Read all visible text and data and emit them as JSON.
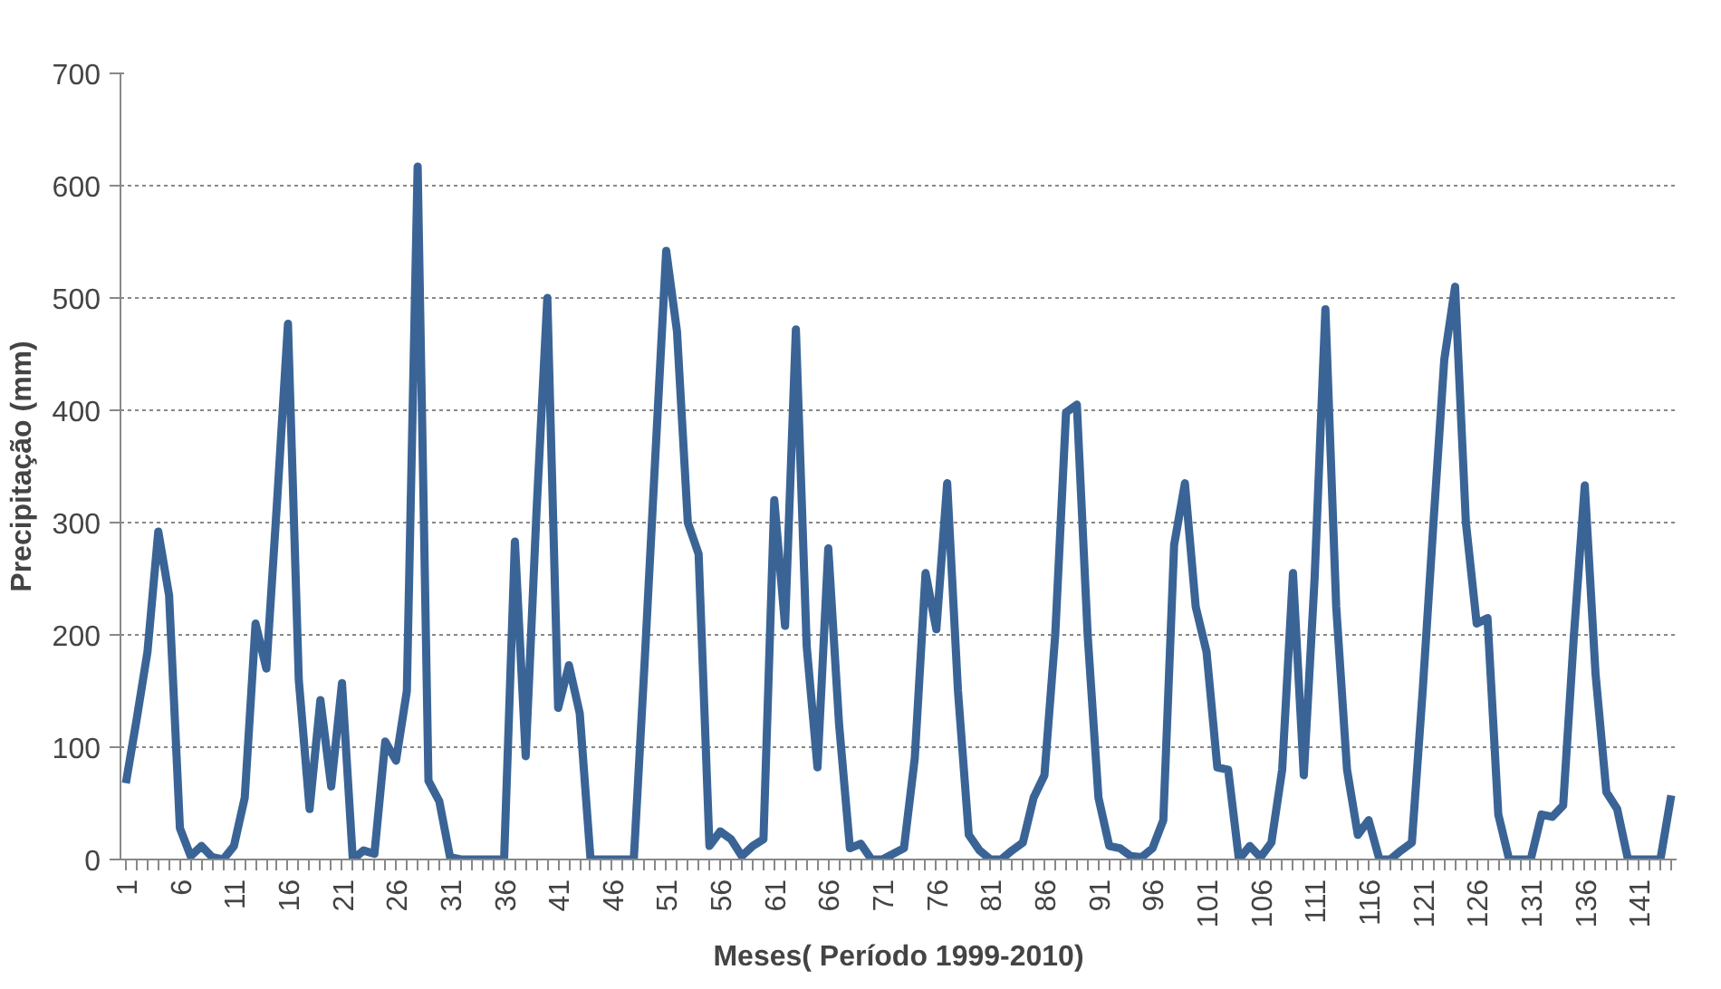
{
  "chart_data": {
    "type": "line",
    "xlabel": "Meses( Período 1999-2010)",
    "ylabel": "Precipitação (mm)",
    "x": [
      1,
      2,
      3,
      4,
      5,
      6,
      7,
      8,
      9,
      10,
      11,
      12,
      13,
      14,
      15,
      16,
      17,
      18,
      19,
      20,
      21,
      22,
      23,
      24,
      25,
      26,
      27,
      28,
      29,
      30,
      31,
      32,
      33,
      34,
      35,
      36,
      37,
      38,
      39,
      40,
      41,
      42,
      43,
      44,
      45,
      46,
      47,
      48,
      49,
      50,
      51,
      52,
      53,
      54,
      55,
      56,
      57,
      58,
      59,
      60,
      61,
      62,
      63,
      64,
      65,
      66,
      67,
      68,
      69,
      70,
      71,
      72,
      73,
      74,
      75,
      76,
      77,
      78,
      79,
      80,
      81,
      82,
      83,
      84,
      85,
      86,
      87,
      88,
      89,
      90,
      91,
      92,
      93,
      94,
      95,
      96,
      97,
      98,
      99,
      100,
      101,
      102,
      103,
      104,
      105,
      106,
      107,
      108,
      109,
      110,
      111,
      112,
      113,
      114,
      115,
      116,
      117,
      118,
      119,
      120,
      121,
      122,
      123,
      124,
      125,
      126,
      127,
      128,
      129,
      130,
      131,
      132,
      133,
      134,
      135,
      136,
      137,
      138,
      139,
      140,
      141,
      142,
      143,
      144
    ],
    "series": [
      {
        "color": "#3a6496",
        "values": [
          68,
          125,
          185,
          292,
          235,
          28,
          3,
          12,
          2,
          0,
          12,
          55,
          210,
          170,
          320,
          477,
          160,
          45,
          142,
          65,
          157,
          0,
          8,
          5,
          105,
          88,
          150,
          617,
          70,
          52,
          2,
          0,
          0,
          0,
          0,
          0,
          283,
          92,
          310,
          500,
          135,
          173,
          130,
          0,
          0,
          0,
          0,
          0,
          175,
          360,
          542,
          470,
          300,
          272,
          12,
          25,
          18,
          3,
          12,
          18,
          320,
          208,
          472,
          190,
          82,
          277,
          120,
          10,
          14,
          0,
          0,
          5,
          10,
          90,
          255,
          205,
          335,
          150,
          22,
          8,
          0,
          0,
          8,
          15,
          55,
          75,
          200,
          398,
          405,
          200,
          55,
          12,
          10,
          3,
          2,
          10,
          35,
          280,
          335,
          225,
          185,
          82,
          80,
          0,
          12,
          2,
          15,
          80,
          255,
          75,
          250,
          490,
          225,
          80,
          22,
          35,
          0,
          0,
          8,
          15,
          150,
          300,
          445,
          510,
          300,
          210,
          215,
          40,
          0,
          0,
          0,
          40,
          38,
          48,
          200,
          333,
          165,
          60,
          45,
          0,
          0,
          0,
          0,
          57
        ]
      }
    ],
    "xlim": [
      0.5,
      144.5
    ],
    "xticks": [
      1,
      6,
      11,
      16,
      21,
      26,
      31,
      36,
      41,
      46,
      51,
      56,
      61,
      66,
      71,
      76,
      81,
      86,
      91,
      96,
      101,
      106,
      111,
      116,
      121,
      126,
      131,
      136,
      141
    ],
    "ylim": [
      0,
      700
    ],
    "yticks": [
      0,
      100,
      200,
      300,
      400,
      500,
      600,
      700
    ],
    "grid": "y",
    "marker": "none",
    "line_style": "solid"
  }
}
